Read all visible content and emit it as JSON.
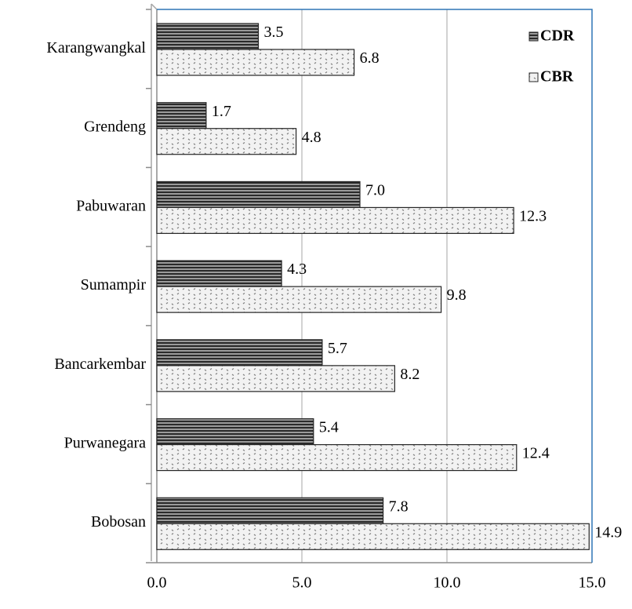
{
  "chart_data": {
    "type": "barh",
    "categories": [
      "Karangwangkal",
      "Grendeng",
      "Pabuwaran",
      "Sumampir",
      "Bancarkembar",
      "Purwanegara",
      "Bobosan"
    ],
    "series": [
      {
        "name": "CDR",
        "color": "#404040",
        "values": [
          3.5,
          1.7,
          7.0,
          4.3,
          5.7,
          5.4,
          7.8
        ],
        "value_labels": [
          "3.5",
          "1.7",
          "7.0",
          "4.3",
          "5.7",
          "5.4",
          "7.8"
        ]
      },
      {
        "name": "CBR",
        "color": "#d9d9d9",
        "values": [
          6.8,
          4.8,
          12.3,
          9.8,
          8.2,
          12.4,
          14.9
        ],
        "value_labels": [
          "6.8",
          "4.8",
          "12.3",
          "9.8",
          "8.2",
          "12.4",
          "14.9"
        ]
      }
    ],
    "xlim": [
      0,
      15
    ],
    "xticks": [
      {
        "value": 0,
        "label": "0.0"
      },
      {
        "value": 5,
        "label": "5.0"
      },
      {
        "value": 10,
        "label": "10.0"
      },
      {
        "value": 15,
        "label": "15.0"
      }
    ],
    "grid": true,
    "legend": "upper right"
  }
}
